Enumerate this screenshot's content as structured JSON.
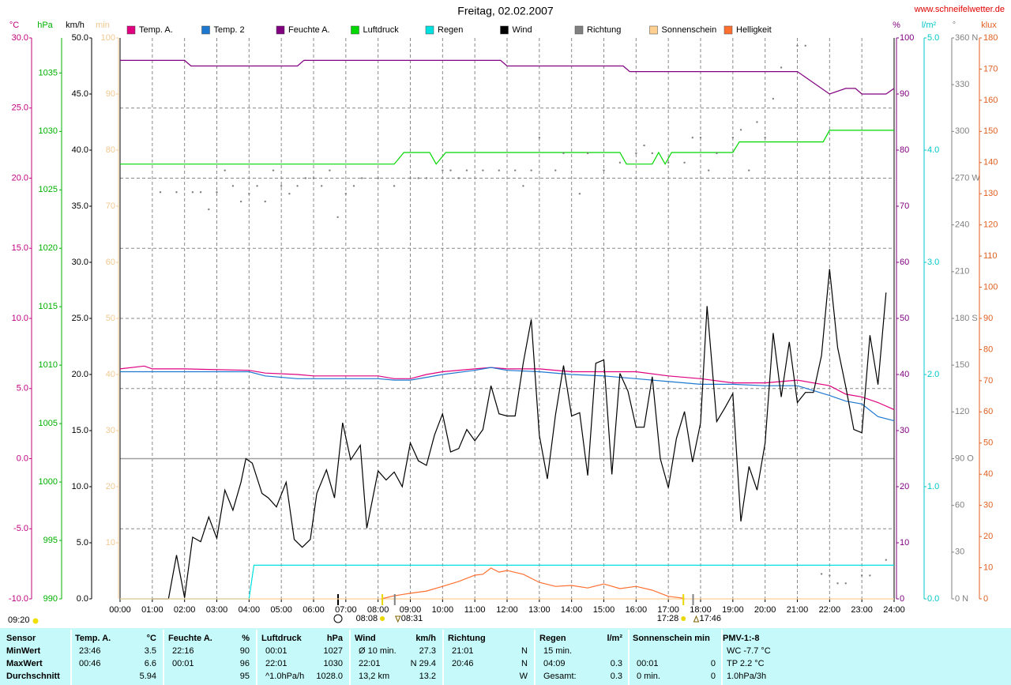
{
  "chart_data": {
    "type": "line",
    "title": "Freitag, 02.02.2007",
    "site": "www.schneifelwetter.de",
    "note": "09:20",
    "xlim": [
      0,
      24
    ],
    "xticks": [
      {
        "value": 0,
        "label": "00:00"
      },
      {
        "value": 1,
        "label": "01:00"
      },
      {
        "value": 2,
        "label": "02:00"
      },
      {
        "value": 3,
        "label": "03:00"
      },
      {
        "value": 4,
        "label": "04:00"
      },
      {
        "value": 5,
        "label": "05:00"
      },
      {
        "value": 6,
        "label": "06:00"
      },
      {
        "value": 7,
        "label": "07:00"
      },
      {
        "value": 8,
        "label": "08:00"
      },
      {
        "value": 9,
        "label": "09:00"
      },
      {
        "value": 10,
        "label": "10:00"
      },
      {
        "value": 11,
        "label": "11:00"
      },
      {
        "value": 12,
        "label": "12:00"
      },
      {
        "value": 13,
        "label": "13:00"
      },
      {
        "value": 14,
        "label": "14:00"
      },
      {
        "value": 15,
        "label": "15:00"
      },
      {
        "value": 16,
        "label": "16:00"
      },
      {
        "value": 17,
        "label": "17:00"
      },
      {
        "value": 18,
        "label": "18:00"
      },
      {
        "value": 19,
        "label": "19:00"
      },
      {
        "value": 20,
        "label": "20:00"
      },
      {
        "value": 21,
        "label": "21:00"
      },
      {
        "value": 22,
        "label": "22:00"
      },
      {
        "value": 23,
        "label": "23:00"
      },
      {
        "value": 24,
        "label": "24:00"
      }
    ],
    "grid": true,
    "axes": [
      {
        "label": "°C",
        "color": "#c0007f",
        "side": "left",
        "lim": [
          -10,
          30
        ],
        "ticks": [
          {
            "value": -10,
            "label": "-10.0"
          },
          {
            "value": -5,
            "label": "-5.0"
          },
          {
            "value": 0,
            "label": "0.0"
          },
          {
            "value": 5,
            "label": "5.0"
          },
          {
            "value": 10,
            "label": "10.0"
          },
          {
            "value": 15,
            "label": "15.0"
          },
          {
            "value": 20,
            "label": "20.0"
          },
          {
            "value": 25,
            "label": "25.0"
          },
          {
            "value": 30,
            "label": "30.0"
          }
        ]
      },
      {
        "label": "hPa",
        "color": "#00b000",
        "side": "left",
        "lim": [
          990,
          1038
        ],
        "ticks": [
          990,
          995,
          1000,
          1005,
          1010,
          1015,
          1020,
          1025,
          1030,
          1035
        ]
      },
      {
        "label": "km/h",
        "color": "#000000",
        "side": "left",
        "lim": [
          0,
          50
        ],
        "ticks": [
          {
            "value": 0,
            "label": "0.0"
          },
          {
            "value": 5,
            "label": "5.0"
          },
          {
            "value": 10,
            "label": "10.0"
          },
          {
            "value": 15,
            "label": "15.0"
          },
          {
            "value": 20,
            "label": "20.0"
          },
          {
            "value": 25,
            "label": "25.0"
          },
          {
            "value": 30,
            "label": "30.0"
          },
          {
            "value": 35,
            "label": "35.0"
          },
          {
            "value": 40,
            "label": "40.0"
          },
          {
            "value": 45,
            "label": "45.0"
          },
          {
            "value": 50,
            "label": "50.0"
          }
        ]
      },
      {
        "label": "min",
        "color": "#f0c890",
        "side": "left",
        "lim": [
          0,
          100
        ],
        "ticks": [
          10,
          20,
          30,
          40,
          50,
          60,
          70,
          80,
          90,
          100
        ]
      },
      {
        "label": "%",
        "color": "#800080",
        "side": "right",
        "lim": [
          0,
          100
        ],
        "ticks": [
          0,
          10,
          20,
          30,
          40,
          50,
          60,
          70,
          80,
          90,
          100
        ]
      },
      {
        "label": "l/m²",
        "color": "#00c8c8",
        "side": "right",
        "lim": [
          0,
          5
        ],
        "ticks": [
          {
            "value": 0,
            "label": "0.0"
          },
          {
            "value": 1,
            "label": "1.0"
          },
          {
            "value": 2,
            "label": "2.0"
          },
          {
            "value": 3,
            "label": "3.0"
          },
          {
            "value": 4,
            "label": "4.0"
          },
          {
            "value": 5,
            "label": "5.0"
          }
        ]
      },
      {
        "label": "°",
        "color": "#808080",
        "side": "right",
        "lim": [
          0,
          360
        ],
        "ticks": [
          {
            "value": 0,
            "label": "0 N"
          },
          30,
          60,
          {
            "value": 90,
            "label": "90 O"
          },
          120,
          150,
          {
            "value": 180,
            "label": "180 S"
          },
          210,
          240,
          {
            "value": 270,
            "label": "270 W"
          },
          300,
          330,
          {
            "value": 360,
            "label": "360 N"
          }
        ]
      },
      {
        "label": "klux",
        "color": "#e06020",
        "side": "right",
        "lim": [
          0,
          180
        ],
        "ticks": [
          0,
          10,
          20,
          30,
          40,
          50,
          60,
          70,
          80,
          90,
          100,
          110,
          120,
          130,
          140,
          150,
          160,
          170,
          180
        ]
      }
    ],
    "series": [
      {
        "name": "Temp. A.",
        "color": "#e0007f",
        "axis": 0,
        "x": [
          0,
          0.75,
          1,
          2,
          4,
          4.5,
          5.5,
          6,
          8,
          8.5,
          9,
          9.5,
          10,
          11,
          11.5,
          12,
          13,
          14,
          15,
          16,
          17,
          18,
          19,
          20,
          21,
          22,
          22.5,
          23,
          23.5,
          24
        ],
        "values": [
          6.4,
          6.6,
          6.4,
          6.4,
          6.3,
          6.1,
          6.0,
          5.9,
          5.9,
          5.7,
          5.7,
          6.0,
          6.2,
          6.4,
          6.5,
          6.4,
          6.4,
          6.2,
          6.2,
          6.2,
          5.9,
          5.7,
          5.4,
          5.4,
          5.6,
          5.2,
          4.6,
          4.4,
          4.0,
          3.5
        ]
      },
      {
        "name": "Temp. 2",
        "color": "#1e78d0",
        "axis": 0,
        "x": [
          0,
          0.75,
          1,
          2,
          4,
          4.5,
          5.5,
          6,
          8,
          8.5,
          9,
          9.5,
          10,
          11,
          11.5,
          12,
          13,
          14,
          15,
          16,
          17,
          18,
          19,
          20,
          21,
          22,
          22.5,
          23,
          23.5,
          24
        ],
        "values": [
          6.2,
          6.2,
          6.2,
          6.2,
          6.2,
          5.9,
          5.7,
          5.7,
          5.7,
          5.6,
          5.6,
          5.8,
          6.0,
          6.3,
          6.5,
          6.3,
          6.2,
          6.0,
          5.9,
          5.7,
          5.5,
          5.3,
          5.3,
          5.2,
          5.2,
          4.5,
          4.1,
          3.9,
          3.0,
          2.7
        ]
      },
      {
        "name": "Feuchte A.",
        "color": "#800080",
        "axis": 4,
        "x": [
          0,
          2,
          2.2,
          5.5,
          5.7,
          11.8,
          12,
          15.6,
          15.8,
          21,
          22,
          22.5,
          22.8,
          23,
          23.75,
          24
        ],
        "values": [
          96,
          96,
          95,
          95,
          96,
          96,
          95,
          95,
          94,
          94,
          90,
          91,
          91,
          90,
          90,
          91
        ]
      },
      {
        "name": "Luftdruck",
        "color": "#00d800",
        "axis": 1,
        "x": [
          0,
          8.5,
          8.8,
          9.6,
          9.8,
          10.1,
          15.5,
          15.7,
          16.5,
          16.7,
          16.9,
          17.1,
          17.3,
          19.0,
          19.2,
          21.8,
          22.0,
          24
        ],
        "values": [
          1027.2,
          1027.2,
          1028.2,
          1028.2,
          1027.2,
          1028.2,
          1028.2,
          1027.2,
          1027.2,
          1028.2,
          1027.2,
          1028.2,
          1028.2,
          1028.2,
          1029.1,
          1029.1,
          1030.1,
          1030.1
        ]
      },
      {
        "name": "Regen",
        "color": "#00e0e0",
        "axis": 5,
        "x": [
          0,
          4.0,
          4.15,
          24
        ],
        "values": [
          0,
          0,
          0.3,
          0.3
        ]
      },
      {
        "name": "Wind",
        "color": "#000000",
        "axis": 2,
        "x": [
          1,
          1.5,
          1.75,
          2,
          2.25,
          2.5,
          2.75,
          3,
          3.25,
          3.5,
          3.75,
          3.9,
          4.1,
          4.4,
          4.6,
          4.85,
          5.15,
          5.4,
          5.65,
          5.9,
          6.1,
          6.4,
          6.65,
          6.9,
          7.15,
          7.45,
          7.65,
          8,
          8.25,
          8.5,
          8.75,
          9,
          9.25,
          9.5,
          9.75,
          10,
          10.25,
          10.5,
          10.75,
          11,
          11.25,
          11.5,
          11.75,
          12,
          12.25,
          12.5,
          12.75,
          13,
          13.25,
          13.5,
          13.75,
          14,
          14.25,
          14.5,
          14.75,
          15,
          15.25,
          15.5,
          15.75,
          16,
          16.25,
          16.5,
          16.75,
          17,
          17.25,
          17.5,
          17.75,
          18,
          18.2,
          18.5,
          18.75,
          19,
          19.25,
          19.5,
          19.75,
          20,
          20.25,
          20.5,
          20.75,
          21,
          21.25,
          21.5,
          21.75,
          22,
          22.25,
          22.5,
          22.75,
          23,
          23.25,
          23.5,
          23.75
        ],
        "values": [
          0,
          0,
          3.9,
          0.1,
          5.5,
          5.1,
          7.3,
          5.4,
          9.7,
          7.9,
          10.4,
          12.5,
          12.1,
          9.4,
          9.0,
          8.2,
          10.4,
          5.3,
          4.6,
          5.3,
          9.4,
          11.5,
          9.0,
          15.7,
          12.4,
          13.7,
          6.3,
          11.4,
          10.6,
          11.3,
          10.0,
          13.9,
          12.3,
          11.9,
          14.6,
          16.5,
          13.1,
          13.4,
          15.1,
          14.1,
          15.1,
          19.0,
          16.5,
          16.3,
          16.3,
          21.0,
          24.9,
          14.6,
          10.7,
          16.4,
          20.8,
          16.3,
          16.6,
          11.0,
          21.0,
          21.3,
          11.1,
          20.1,
          18.5,
          15.3,
          15.3,
          19.8,
          12.5,
          9.9,
          14.3,
          16.7,
          12.2,
          15.7,
          26.1,
          15.8,
          17.0,
          18.3,
          6.9,
          11.8,
          9.7,
          13.9,
          23.7,
          18.0,
          22.9,
          17.5,
          18.4,
          18.4,
          21.7,
          29.4,
          22.4,
          18.9,
          15.1,
          14.8,
          23.5,
          19.1,
          27.3
        ]
      },
      {
        "name": "Richtung",
        "color": "#808080",
        "axis": 6,
        "mode": "points",
        "x": [
          1.25,
          1.75,
          2.25,
          2.5,
          2.75,
          3,
          3.25,
          3.5,
          3.75,
          4,
          4.25,
          4.5,
          4.75,
          5,
          5.25,
          5.5,
          5.75,
          6,
          6.25,
          6.5,
          6.75,
          7,
          7.25,
          7.5,
          8,
          8.5,
          9,
          9.25,
          9.5,
          10,
          10.25,
          10.5,
          10.75,
          11.25,
          11.75,
          12.25,
          12.5,
          12.75,
          13,
          13.5,
          13.75,
          14.25,
          14.5,
          15,
          15.5,
          16,
          16.25,
          16.5,
          17,
          17.5,
          17.75,
          18,
          18.25,
          18.5,
          19,
          19.25,
          19.5,
          19.75,
          20,
          20.25,
          20.5,
          21,
          21.25,
          21.75,
          22,
          22.25,
          22.5,
          23,
          23.25,
          23.75
        ],
        "values": [
          261,
          261,
          261,
          261,
          250,
          261,
          275,
          265,
          255,
          260,
          265,
          255,
          275,
          265,
          260,
          265,
          270,
          270,
          265,
          275,
          245,
          260,
          265,
          270,
          270,
          265,
          270,
          270,
          270,
          275,
          275,
          270,
          275,
          275,
          275,
          275,
          265,
          275,
          296,
          275,
          286,
          260,
          286,
          275,
          280,
          286,
          291,
          286,
          280,
          280,
          296,
          296,
          275,
          286,
          296,
          301,
          275,
          306,
          296,
          321,
          341,
          355,
          355,
          16,
          15,
          10,
          10,
          15,
          15,
          25
        ]
      },
      {
        "name": "Sonnenschein",
        "color": "#ffd090",
        "axis": 3,
        "x": [
          0,
          24
        ],
        "values": [
          0,
          0
        ]
      },
      {
        "name": "Helligkeit",
        "color": "#ff7030",
        "axis": 7,
        "x": [
          8.1,
          8.5,
          9,
          9.5,
          10,
          10.5,
          11,
          11.25,
          11.5,
          11.75,
          12,
          12.5,
          13,
          13.5,
          14,
          14.5,
          15,
          15.5,
          16,
          16.5,
          17,
          17.4,
          17.5
        ],
        "values": [
          0,
          1,
          1.8,
          2.5,
          4,
          5.6,
          7.6,
          7.9,
          9.9,
          8.6,
          9.1,
          7.9,
          5.3,
          4,
          4.3,
          3.5,
          4.8,
          3.3,
          4,
          2.8,
          0.8,
          0.3,
          0
        ]
      }
    ],
    "sun_events": [
      {
        "x": 8.133,
        "label": "08:08",
        "color": "#e8d800"
      },
      {
        "x": 8.517,
        "label": "08:31",
        "color": "#808080"
      },
      {
        "x": 17.467,
        "label": "17:28",
        "color": "#e8d800"
      },
      {
        "x": 17.767,
        "label": "17:46",
        "color": "#808080"
      }
    ]
  },
  "table": {
    "header": [
      {
        "l": "Sensor"
      },
      {
        "l": "Temp. A.",
        "r": "°C"
      },
      {
        "l": "Feuchte A.",
        "r": "%"
      },
      {
        "l": "Luftdruck",
        "r": "hPa"
      },
      {
        "l": "Wind",
        "r": "km/h"
      },
      {
        "l": "Richtung"
      },
      {
        "l": "Regen",
        "r": "l/m²"
      },
      {
        "l": "Sonnenschein min"
      },
      {
        "l": "PMV-1:-8"
      }
    ],
    "rows": [
      [
        {
          "l": "MinWert"
        },
        {
          "l": "23:46",
          "r": "3.5"
        },
        {
          "l": "22:16",
          "r": "90"
        },
        {
          "l": "00:01",
          "r": "1027"
        },
        {
          "l": "Ø 10 min.",
          "r": "27.3"
        },
        {
          "l": "21:01",
          "r": "N"
        },
        {
          "l": "15 min."
        },
        {},
        {
          "l": "WC -7.7 °C"
        }
      ],
      [
        {
          "l": "MaxWert"
        },
        {
          "l": "00:46",
          "r": "6.6"
        },
        {
          "l": "00:01",
          "r": "96"
        },
        {
          "l": "22:01",
          "r": "1030"
        },
        {
          "l": "22:01",
          "r": "N 29.4"
        },
        {
          "l": "20:46",
          "r": "N"
        },
        {
          "l": "04:09",
          "r": "0.3"
        },
        {
          "l": "00:01",
          "r": "0"
        },
        {
          "l": "TP 2.2 °C"
        }
      ],
      [
        {
          "l": "Durchschnitt"
        },
        {
          "r": "5.94"
        },
        {
          "r": "95"
        },
        {
          "l": "^1.0hPa/h",
          "r": "1028.0"
        },
        {
          "l": "13,2 km",
          "r": "13.2"
        },
        {
          "r": "W"
        },
        {
          "l": "Gesamt:",
          "r": "0.3"
        },
        {
          "l": "0 min.",
          "r": "0"
        },
        {
          "l": "1.0hPa/3h"
        }
      ]
    ]
  }
}
